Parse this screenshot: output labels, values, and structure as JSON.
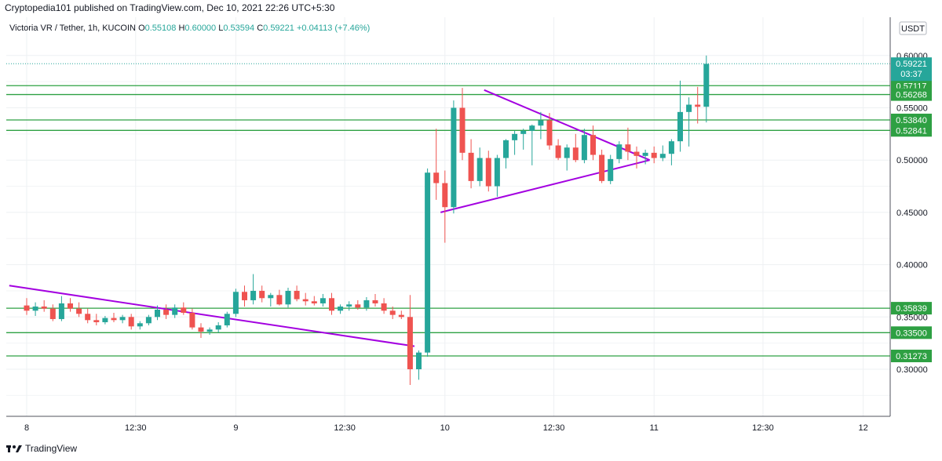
{
  "header": {
    "publish_line": "Cryptopedia101 published on TradingView.com, Dec 10, 2021 22:26 UTC+5:30"
  },
  "symbol_line": {
    "name": "Victoria VR / Tether, 1h, KUCOIN",
    "o_label": "O",
    "o": "0.55108",
    "h_label": "H",
    "h": "0.60000",
    "l_label": "L",
    "l": "0.53594",
    "c_label": "C",
    "c": "0.59221",
    "change": "+0.04113 (+7.46%)"
  },
  "currency_badge": "USDT",
  "price_badge": {
    "price": "0.59221",
    "countdown": "03:37"
  },
  "footer": {
    "brand": "TradingView"
  },
  "colors": {
    "up": "#26a69a",
    "down": "#ef5350",
    "level": "#2ea043",
    "triangle": "#a300e0",
    "badge": "#26a69a"
  },
  "chart_data": {
    "type": "candlestick",
    "title": "Victoria VR / Tether, 1h, KUCOIN",
    "ylim": [
      0.25,
      0.615
    ],
    "y_ticks": [
      "0.30000",
      "0.35000",
      "0.40000",
      "0.45000",
      "0.50000",
      "0.55000",
      "0.60000"
    ],
    "x_ticks": [
      {
        "label": "8",
        "t": 0
      },
      {
        "label": "12:30",
        "t": 12.5
      },
      {
        "label": "9",
        "t": 24
      },
      {
        "label": "12:30",
        "t": 36.5
      },
      {
        "label": "10",
        "t": 48
      },
      {
        "label": "12:30",
        "t": 60.5
      },
      {
        "label": "11",
        "t": 72
      },
      {
        "label": "12:30",
        "t": 84.5
      },
      {
        "label": "12",
        "t": 96
      }
    ],
    "levels": [
      "0.57117",
      "0.56268",
      "0.53840",
      "0.52841",
      "0.35839",
      "0.33500",
      "0.31273"
    ],
    "trendlines": [
      {
        "t1": -2,
        "p1": 0.38,
        "t2": 44.5,
        "p2": 0.322
      },
      {
        "t1": 47.5,
        "p1": 0.45,
        "t2": 71.5,
        "p2": 0.5
      },
      {
        "t1": 52.5,
        "p1": 0.567,
        "t2": 71.5,
        "p2": 0.5
      }
    ],
    "candles": [
      {
        "o": 0.361,
        "h": 0.368,
        "l": 0.352,
        "c": 0.356
      },
      {
        "o": 0.356,
        "h": 0.364,
        "l": 0.351,
        "c": 0.36
      },
      {
        "o": 0.36,
        "h": 0.366,
        "l": 0.355,
        "c": 0.358
      },
      {
        "o": 0.358,
        "h": 0.362,
        "l": 0.346,
        "c": 0.348
      },
      {
        "o": 0.348,
        "h": 0.37,
        "l": 0.346,
        "c": 0.363
      },
      {
        "o": 0.363,
        "h": 0.368,
        "l": 0.355,
        "c": 0.358
      },
      {
        "o": 0.358,
        "h": 0.364,
        "l": 0.35,
        "c": 0.353
      },
      {
        "o": 0.353,
        "h": 0.358,
        "l": 0.344,
        "c": 0.347
      },
      {
        "o": 0.347,
        "h": 0.353,
        "l": 0.342,
        "c": 0.345
      },
      {
        "o": 0.345,
        "h": 0.351,
        "l": 0.343,
        "c": 0.349
      },
      {
        "o": 0.349,
        "h": 0.354,
        "l": 0.345,
        "c": 0.347
      },
      {
        "o": 0.347,
        "h": 0.352,
        "l": 0.344,
        "c": 0.35
      },
      {
        "o": 0.35,
        "h": 0.353,
        "l": 0.338,
        "c": 0.341
      },
      {
        "o": 0.341,
        "h": 0.346,
        "l": 0.338,
        "c": 0.344
      },
      {
        "o": 0.344,
        "h": 0.352,
        "l": 0.342,
        "c": 0.35
      },
      {
        "o": 0.35,
        "h": 0.361,
        "l": 0.347,
        "c": 0.357
      },
      {
        "o": 0.357,
        "h": 0.362,
        "l": 0.348,
        "c": 0.352
      },
      {
        "o": 0.352,
        "h": 0.362,
        "l": 0.349,
        "c": 0.359
      },
      {
        "o": 0.359,
        "h": 0.364,
        "l": 0.352,
        "c": 0.354
      },
      {
        "o": 0.354,
        "h": 0.358,
        "l": 0.338,
        "c": 0.34
      },
      {
        "o": 0.34,
        "h": 0.344,
        "l": 0.33,
        "c": 0.336
      },
      {
        "o": 0.336,
        "h": 0.34,
        "l": 0.333,
        "c": 0.338
      },
      {
        "o": 0.338,
        "h": 0.345,
        "l": 0.335,
        "c": 0.342
      },
      {
        "o": 0.342,
        "h": 0.355,
        "l": 0.34,
        "c": 0.353
      },
      {
        "o": 0.353,
        "h": 0.377,
        "l": 0.35,
        "c": 0.374
      },
      {
        "o": 0.374,
        "h": 0.38,
        "l": 0.36,
        "c": 0.366
      },
      {
        "o": 0.366,
        "h": 0.391,
        "l": 0.362,
        "c": 0.375
      },
      {
        "o": 0.375,
        "h": 0.38,
        "l": 0.364,
        "c": 0.368
      },
      {
        "o": 0.368,
        "h": 0.373,
        "l": 0.36,
        "c": 0.371
      },
      {
        "o": 0.371,
        "h": 0.376,
        "l": 0.361,
        "c": 0.362
      },
      {
        "o": 0.362,
        "h": 0.378,
        "l": 0.359,
        "c": 0.375
      },
      {
        "o": 0.375,
        "h": 0.38,
        "l": 0.365,
        "c": 0.367
      },
      {
        "o": 0.367,
        "h": 0.373,
        "l": 0.361,
        "c": 0.365
      },
      {
        "o": 0.365,
        "h": 0.37,
        "l": 0.361,
        "c": 0.363
      },
      {
        "o": 0.363,
        "h": 0.372,
        "l": 0.36,
        "c": 0.368
      },
      {
        "o": 0.368,
        "h": 0.373,
        "l": 0.352,
        "c": 0.356
      },
      {
        "o": 0.356,
        "h": 0.362,
        "l": 0.353,
        "c": 0.36
      },
      {
        "o": 0.36,
        "h": 0.365,
        "l": 0.356,
        "c": 0.362
      },
      {
        "o": 0.362,
        "h": 0.366,
        "l": 0.357,
        "c": 0.359
      },
      {
        "o": 0.359,
        "h": 0.369,
        "l": 0.356,
        "c": 0.366
      },
      {
        "o": 0.366,
        "h": 0.372,
        "l": 0.36,
        "c": 0.363
      },
      {
        "o": 0.363,
        "h": 0.368,
        "l": 0.353,
        "c": 0.356
      },
      {
        "o": 0.356,
        "h": 0.36,
        "l": 0.348,
        "c": 0.352
      },
      {
        "o": 0.352,
        "h": 0.356,
        "l": 0.348,
        "c": 0.35
      },
      {
        "o": 0.35,
        "h": 0.371,
        "l": 0.285,
        "c": 0.3
      },
      {
        "o": 0.3,
        "h": 0.318,
        "l": 0.29,
        "c": 0.316
      },
      {
        "o": 0.316,
        "h": 0.492,
        "l": 0.312,
        "c": 0.488
      },
      {
        "o": 0.488,
        "h": 0.53,
        "l": 0.462,
        "c": 0.478
      },
      {
        "o": 0.478,
        "h": 0.49,
        "l": 0.421,
        "c": 0.455
      },
      {
        "o": 0.455,
        "h": 0.557,
        "l": 0.449,
        "c": 0.55
      },
      {
        "o": 0.55,
        "h": 0.569,
        "l": 0.5,
        "c": 0.507
      },
      {
        "o": 0.507,
        "h": 0.52,
        "l": 0.473,
        "c": 0.48
      },
      {
        "o": 0.48,
        "h": 0.512,
        "l": 0.475,
        "c": 0.502
      },
      {
        "o": 0.502,
        "h": 0.509,
        "l": 0.47,
        "c": 0.475
      },
      {
        "o": 0.475,
        "h": 0.505,
        "l": 0.465,
        "c": 0.502
      },
      {
        "o": 0.502,
        "h": 0.52,
        "l": 0.492,
        "c": 0.519
      },
      {
        "o": 0.519,
        "h": 0.528,
        "l": 0.505,
        "c": 0.525
      },
      {
        "o": 0.525,
        "h": 0.53,
        "l": 0.51,
        "c": 0.528
      },
      {
        "o": 0.528,
        "h": 0.534,
        "l": 0.495,
        "c": 0.533
      },
      {
        "o": 0.533,
        "h": 0.546,
        "l": 0.52,
        "c": 0.538
      },
      {
        "o": 0.538,
        "h": 0.545,
        "l": 0.51,
        "c": 0.514
      },
      {
        "o": 0.514,
        "h": 0.52,
        "l": 0.5,
        "c": 0.502
      },
      {
        "o": 0.502,
        "h": 0.515,
        "l": 0.49,
        "c": 0.512
      },
      {
        "o": 0.512,
        "h": 0.525,
        "l": 0.498,
        "c": 0.5
      },
      {
        "o": 0.5,
        "h": 0.53,
        "l": 0.497,
        "c": 0.524
      },
      {
        "o": 0.524,
        "h": 0.533,
        "l": 0.5,
        "c": 0.505
      },
      {
        "o": 0.505,
        "h": 0.51,
        "l": 0.478,
        "c": 0.48
      },
      {
        "o": 0.48,
        "h": 0.505,
        "l": 0.477,
        "c": 0.501
      },
      {
        "o": 0.501,
        "h": 0.518,
        "l": 0.497,
        "c": 0.515
      },
      {
        "o": 0.515,
        "h": 0.531,
        "l": 0.5,
        "c": 0.508
      },
      {
        "o": 0.508,
        "h": 0.513,
        "l": 0.492,
        "c": 0.504
      },
      {
        "o": 0.504,
        "h": 0.51,
        "l": 0.496,
        "c": 0.507
      },
      {
        "o": 0.507,
        "h": 0.513,
        "l": 0.497,
        "c": 0.502
      },
      {
        "o": 0.502,
        "h": 0.514,
        "l": 0.499,
        "c": 0.506
      },
      {
        "o": 0.506,
        "h": 0.52,
        "l": 0.495,
        "c": 0.518
      },
      {
        "o": 0.518,
        "h": 0.576,
        "l": 0.508,
        "c": 0.546
      },
      {
        "o": 0.546,
        "h": 0.56,
        "l": 0.513,
        "c": 0.553
      },
      {
        "o": 0.553,
        "h": 0.57,
        "l": 0.535,
        "c": 0.551
      },
      {
        "o": 0.551,
        "h": 0.6,
        "l": 0.536,
        "c": 0.592
      }
    ]
  }
}
